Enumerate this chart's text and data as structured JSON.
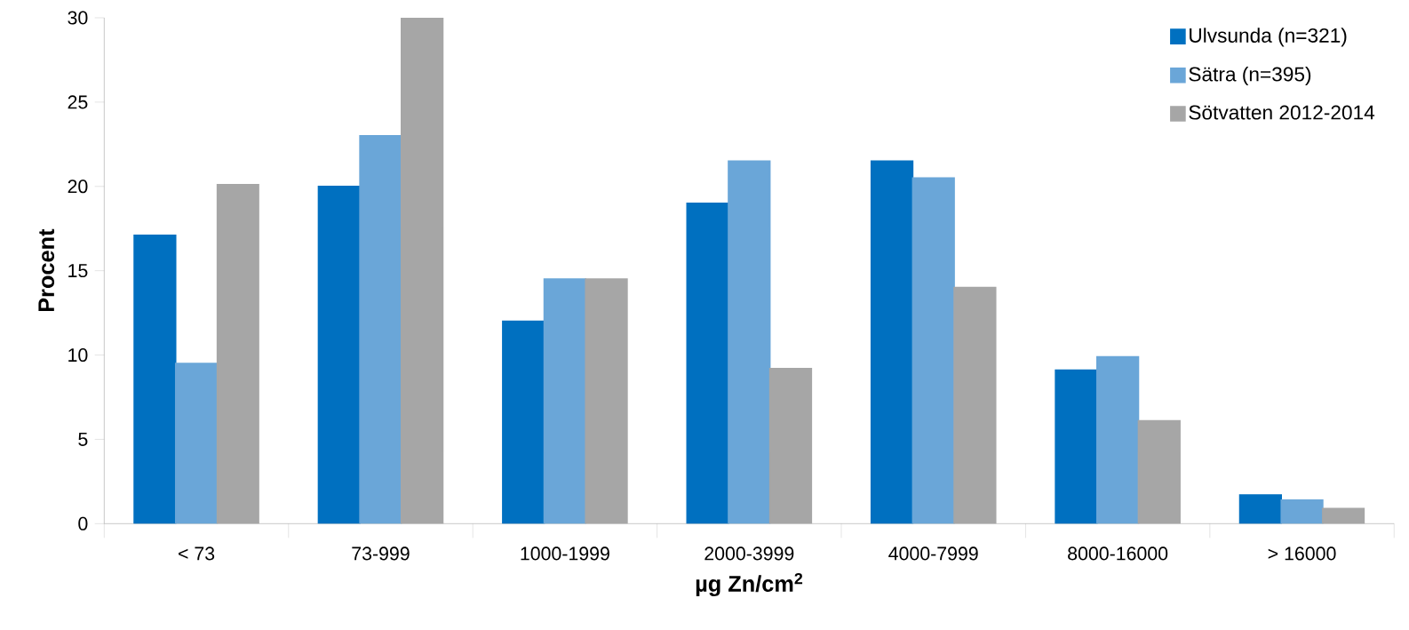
{
  "chart_data": {
    "type": "bar",
    "xlabel": "µg Zn/cm$^{2}$",
    "ylabel": "Procent",
    "categories": [
      "< 73",
      "73-999",
      "1000-1999",
      "2000-3999",
      "4000-7999",
      "8000-16000",
      "> 16000"
    ],
    "series": [
      {
        "name": "Ulvsunda (n=321)",
        "color": "#0070c0",
        "values": [
          17.1,
          20,
          12,
          19,
          21.5,
          9.1,
          1.7
        ]
      },
      {
        "name": "Sätra (n=395)",
        "color": "#6aa6d8",
        "values": [
          9.5,
          23,
          14.5,
          21.5,
          20.5,
          9.9,
          1.4
        ]
      },
      {
        "name": "Sötvatten 2012-2014",
        "color": "#a6a6a6",
        "values": [
          20.1,
          30,
          14.5,
          9.2,
          14,
          6.1,
          0.9
        ]
      }
    ],
    "ylim": [
      0,
      30
    ],
    "yticks": [
      0,
      5,
      10,
      15,
      20,
      25,
      30
    ],
    "grid": false,
    "legend": "top right"
  }
}
